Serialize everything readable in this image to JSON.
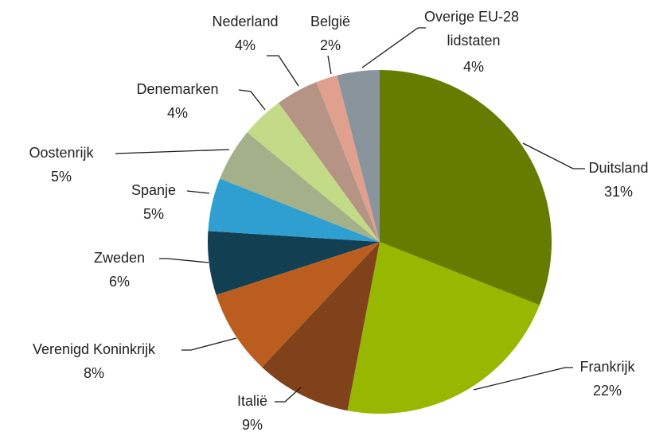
{
  "chart_data": {
    "type": "pie",
    "categories": [
      "Duitsland",
      "Frankrijk",
      "Italië",
      "Verenigd Koninkrijk",
      "Zweden",
      "Spanje",
      "Oostenrijk",
      "Denemarken",
      "Nederland",
      "België",
      "Overige EU-28 lidstaten"
    ],
    "values": [
      31,
      22,
      9,
      8,
      6,
      5,
      5,
      4,
      4,
      2,
      4
    ],
    "value_labels": [
      "31%",
      "22%",
      "9%",
      "8%",
      "6%",
      "5%",
      "5%",
      "4%",
      "4%",
      "2%",
      "4%"
    ],
    "colors": [
      "#647d00",
      "#97b700",
      "#80421a",
      "#bc5d20",
      "#133f53",
      "#2e9fd0",
      "#a3b08a",
      "#c3da86",
      "#b59485",
      "#e0a08e",
      "#8a949c"
    ]
  }
}
